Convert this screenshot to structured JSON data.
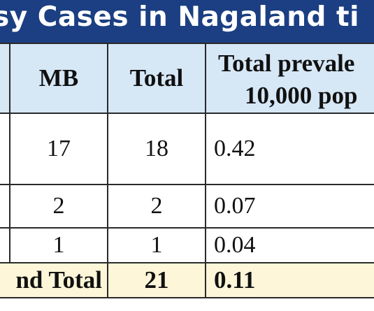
{
  "title": "sy Cases in Nagaland ti",
  "header": {
    "mb": "MB",
    "total": "Total",
    "prevalence_line1": "Total prevale",
    "prevalence_line2": "10,000 pop"
  },
  "rows": [
    {
      "mb": "17",
      "total": "18",
      "prevalence": "0.42"
    },
    {
      "mb": "2",
      "total": "2",
      "prevalence": "0.07"
    },
    {
      "mb": "1",
      "total": "1",
      "prevalence": "0.04"
    }
  ],
  "grand_total": {
    "label": "nd Total",
    "total": "21",
    "prevalence": "0.11"
  },
  "colors": {
    "title_bar": "#1b3f82",
    "header_bg": "#d6e7f6",
    "grand_total_bg": "#fdf6d8"
  }
}
